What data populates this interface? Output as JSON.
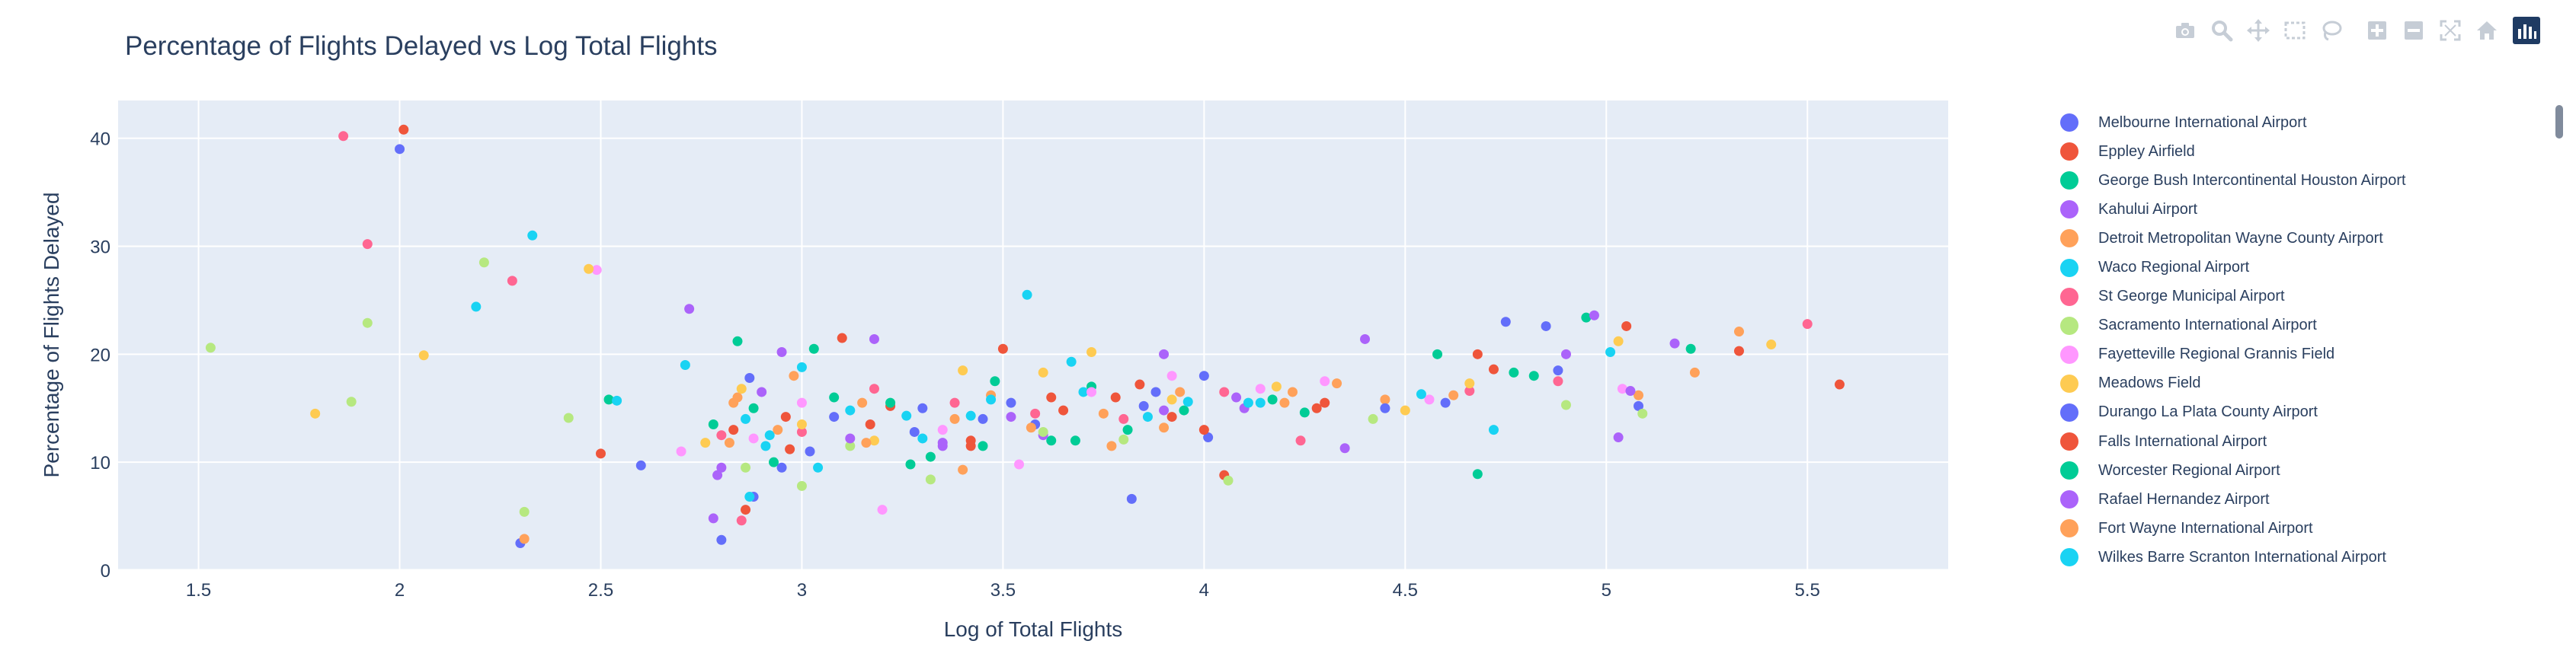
{
  "chart_data": {
    "type": "scatter",
    "title": "Percentage of Flights Delayed vs Log Total Flights",
    "xlabel": "Log of Total Flights",
    "ylabel": "Percentage of Flights Delayed",
    "xlim": [
      1.3,
      5.85
    ],
    "ylim": [
      0,
      43.5
    ],
    "xticks": [
      "1.5",
      "2",
      "2.5",
      "3",
      "3.5",
      "4",
      "4.5",
      "5",
      "5.5"
    ],
    "yticks": [
      "0",
      "10",
      "20",
      "30",
      "40"
    ],
    "grid": true,
    "legend_position": "right",
    "colors": [
      "#636efa",
      "#ef553b",
      "#00cc96",
      "#ab63fa",
      "#ffa15a",
      "#19d3f3",
      "#ff6692",
      "#b6e880",
      "#ff97ff",
      "#fecb52"
    ],
    "series": [
      {
        "name": "Melbourne International Airport",
        "color": "#636efa",
        "x": [
          2.0,
          2.3,
          2.88,
          2.95,
          3.02,
          3.28,
          3.45,
          3.58,
          3.82,
          3.88,
          4.0,
          4.6,
          4.75,
          4.88,
          5.08
        ],
        "y": [
          39.0,
          2.5,
          6.8,
          9.5,
          11.0,
          12.8,
          14.0,
          13.5,
          6.6,
          16.5,
          18.0,
          15.5,
          23.0,
          18.5,
          15.2
        ]
      },
      {
        "name": "Eppley Airfield",
        "color": "#ef553b",
        "x": [
          2.01,
          2.5,
          2.86,
          2.96,
          3.1,
          3.22,
          3.42,
          3.5,
          3.65,
          3.78,
          3.92,
          4.05,
          4.3,
          4.68,
          5.05,
          5.33,
          5.58
        ],
        "y": [
          40.8,
          10.8,
          5.6,
          14.2,
          21.5,
          15.2,
          12.0,
          20.5,
          14.8,
          16.0,
          14.2,
          8.8,
          15.5,
          20.0,
          22.6,
          20.3,
          17.2
        ]
      },
      {
        "name": "George Bush Intercontinental Houston Airport",
        "color": "#00cc96",
        "x": [
          2.52,
          2.84,
          2.88,
          3.03,
          3.22,
          3.32,
          3.48,
          3.62,
          3.72,
          3.95,
          4.25,
          4.58,
          4.68,
          4.82,
          4.95,
          5.21
        ],
        "y": [
          15.8,
          21.2,
          15.0,
          20.5,
          15.5,
          10.5,
          17.5,
          12.0,
          17.0,
          14.8,
          14.6,
          20.0,
          8.9,
          18.0,
          23.4,
          20.5
        ]
      },
      {
        "name": "Kahului Airport",
        "color": "#ab63fa",
        "x": [
          2.72,
          2.78,
          2.8,
          2.95,
          3.18,
          3.35,
          3.6,
          3.9,
          4.1,
          4.35,
          4.4,
          4.9,
          4.97,
          5.03,
          5.17
        ],
        "y": [
          24.2,
          4.8,
          9.5,
          20.2,
          21.4,
          11.5,
          12.5,
          20.0,
          15.0,
          11.3,
          21.4,
          20.0,
          23.6,
          12.3,
          21.0
        ]
      },
      {
        "name": "Detroit Metropolitan Wayne County Airport",
        "color": "#ffa15a",
        "x": [
          2.31,
          2.82,
          2.84,
          2.98,
          3.15,
          3.4,
          3.47,
          3.75,
          3.9,
          4.2,
          4.45,
          4.62,
          5.08,
          5.22,
          5.33
        ],
        "y": [
          2.9,
          11.8,
          16.0,
          18.0,
          15.5,
          9.3,
          16.2,
          14.5,
          13.2,
          15.5,
          15.8,
          16.2,
          16.2,
          18.3,
          22.1
        ]
      },
      {
        "name": "Waco Regional Airport",
        "color": "#19d3f3",
        "x": [
          2.19,
          2.33,
          2.54,
          2.71,
          2.87,
          2.92,
          3.0,
          3.12,
          3.3,
          3.42,
          3.56,
          3.7,
          3.96,
          4.14,
          4.72,
          5.01
        ],
        "y": [
          24.4,
          31.0,
          15.7,
          19.0,
          6.8,
          12.5,
          18.8,
          14.8,
          12.2,
          14.3,
          25.5,
          16.5,
          15.6,
          15.5,
          13.0,
          20.2
        ]
      },
      {
        "name": "St George Municipal Airport",
        "color": "#ff6692",
        "x": [
          1.86,
          1.92,
          2.28,
          2.8,
          2.85,
          3.0,
          3.18,
          3.38,
          3.58,
          3.8,
          4.05,
          4.24,
          4.66,
          4.88,
          5.5
        ],
        "y": [
          40.2,
          30.2,
          26.8,
          12.5,
          4.6,
          12.8,
          16.8,
          15.5,
          14.5,
          14.0,
          16.5,
          12.0,
          16.6,
          17.5,
          22.8
        ]
      },
      {
        "name": "Sacramento International Airport",
        "color": "#b6e880",
        "x": [
          1.53,
          1.88,
          1.92,
          2.21,
          2.31,
          2.42,
          2.86,
          3.0,
          3.12,
          3.32,
          3.6,
          3.8,
          4.06,
          4.42,
          4.9,
          5.09
        ],
        "y": [
          20.6,
          15.6,
          22.9,
          28.5,
          5.4,
          14.1,
          9.5,
          7.8,
          11.5,
          8.4,
          12.8,
          12.1,
          8.3,
          14.0,
          15.3,
          14.5
        ]
      },
      {
        "name": "Fayetteville Regional Grannis Field",
        "color": "#ff97ff",
        "x": [
          2.49,
          2.7,
          2.88,
          3.0,
          3.2,
          3.35,
          3.54,
          3.72,
          3.92,
          4.14,
          4.3,
          4.56,
          5.04
        ],
        "y": [
          27.8,
          11.0,
          12.2,
          15.5,
          5.6,
          13.0,
          9.8,
          16.5,
          18.0,
          16.8,
          17.5,
          15.8,
          16.8
        ]
      },
      {
        "name": "Meadows Field",
        "color": "#fecb52",
        "x": [
          1.79,
          2.06,
          2.47,
          2.76,
          2.85,
          3.0,
          3.18,
          3.4,
          3.6,
          3.72,
          3.92,
          4.18,
          4.5,
          4.66,
          5.03,
          5.41
        ],
        "y": [
          14.5,
          19.9,
          27.9,
          11.8,
          16.8,
          13.5,
          12.0,
          18.5,
          18.3,
          20.2,
          15.8,
          17.0,
          14.8,
          17.3,
          21.2,
          20.9
        ]
      },
      {
        "name": "Durango La Plata County Airport",
        "color": "#636efa",
        "x": [
          2.6,
          2.8,
          2.87,
          3.08,
          3.3,
          3.52,
          3.85,
          4.01,
          4.45,
          4.85
        ],
        "y": [
          9.7,
          2.8,
          17.8,
          14.2,
          15.0,
          15.5,
          15.2,
          12.3,
          15.0,
          22.6
        ]
      },
      {
        "name": "Falls International Airport",
        "color": "#ef553b",
        "x": [
          2.83,
          2.97,
          3.17,
          3.42,
          3.62,
          3.84,
          4.0,
          4.28,
          4.72
        ],
        "y": [
          13.0,
          11.2,
          13.5,
          11.5,
          16.0,
          17.2,
          13.0,
          15.0,
          18.6
        ]
      },
      {
        "name": "Worcester Regional Airport",
        "color": "#00cc96",
        "x": [
          2.78,
          2.93,
          3.08,
          3.27,
          3.45,
          3.68,
          3.81,
          4.17,
          4.77
        ],
        "y": [
          13.5,
          10.0,
          16.0,
          9.8,
          11.5,
          12.0,
          13.0,
          15.8,
          18.3
        ]
      },
      {
        "name": "Rafael Hernandez Airport",
        "color": "#ab63fa",
        "x": [
          2.79,
          2.9,
          3.12,
          3.35,
          3.52,
          3.9,
          4.08,
          5.06
        ],
        "y": [
          8.8,
          16.5,
          12.2,
          11.8,
          14.2,
          14.8,
          16.0,
          16.6
        ]
      },
      {
        "name": "Fort Wayne International Airport",
        "color": "#ffa15a",
        "x": [
          2.83,
          2.94,
          3.16,
          3.38,
          3.57,
          3.77,
          3.94,
          4.22,
          4.33
        ],
        "y": [
          15.5,
          13.0,
          11.8,
          14.0,
          13.2,
          11.5,
          16.5,
          16.5,
          17.3
        ]
      },
      {
        "name": "Wilkes Barre Scranton International Airport",
        "color": "#19d3f3",
        "x": [
          2.86,
          2.91,
          3.04,
          3.26,
          3.47,
          3.67,
          3.86,
          4.11,
          4.54
        ],
        "y": [
          14.0,
          11.5,
          9.5,
          14.3,
          15.8,
          19.3,
          14.2,
          15.5,
          16.3
        ]
      }
    ]
  },
  "modebar": {
    "icons": [
      "camera-icon",
      "zoom-icon",
      "pan-icon",
      "box-select-icon",
      "lasso-select-icon",
      "zoom-in-icon",
      "zoom-out-icon",
      "autoscale-icon",
      "reset-axes-icon",
      "plotly-logo-icon"
    ]
  }
}
